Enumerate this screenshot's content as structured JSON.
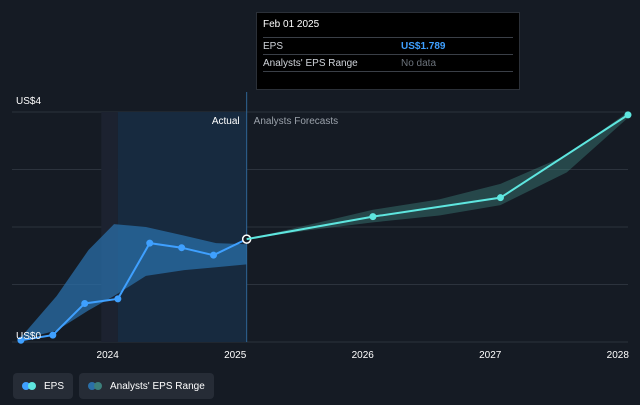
{
  "chart_data": {
    "type": "line",
    "ylabel_top": "US$4",
    "ylabel_bottom": "US$0",
    "ylim": [
      0,
      4
    ],
    "xlim": [
      2023.25,
      2028.08
    ],
    "x_ticks": [
      {
        "value": 2024,
        "label": "2024"
      },
      {
        "value": 2025,
        "label": "2025"
      },
      {
        "value": 2026,
        "label": "2026"
      },
      {
        "value": 2027,
        "label": "2027"
      },
      {
        "value": 2028,
        "label": "2028"
      }
    ],
    "divider_x": 2025.09,
    "region_labels": {
      "actual": "Actual",
      "forecast": "Analysts Forecasts"
    },
    "series": [
      {
        "name": "EPS",
        "color": "#3fa0ff",
        "points": [
          {
            "x": 2023.32,
            "y": 0.03
          },
          {
            "x": 2023.57,
            "y": 0.12
          },
          {
            "x": 2023.82,
            "y": 0.67
          },
          {
            "x": 2024.08,
            "y": 0.75
          },
          {
            "x": 2024.33,
            "y": 1.72
          },
          {
            "x": 2024.58,
            "y": 1.64
          },
          {
            "x": 2024.83,
            "y": 1.51
          },
          {
            "x": 2025.09,
            "y": 1.789
          }
        ]
      },
      {
        "name": "EPS Forecast",
        "color": "#5ee6df",
        "points": [
          {
            "x": 2025.09,
            "y": 1.789
          },
          {
            "x": 2026.08,
            "y": 2.18
          },
          {
            "x": 2027.08,
            "y": 2.51
          },
          {
            "x": 2028.08,
            "y": 3.95
          }
        ]
      }
    ],
    "analyst_range_actual": [
      {
        "x": 2023.3,
        "lo": 0.03,
        "hi": 0.03
      },
      {
        "x": 2023.6,
        "lo": 0.2,
        "hi": 0.8
      },
      {
        "x": 2023.85,
        "lo": 0.55,
        "hi": 1.6
      },
      {
        "x": 2024.05,
        "lo": 0.8,
        "hi": 2.05
      },
      {
        "x": 2024.3,
        "lo": 1.15,
        "hi": 2.0
      },
      {
        "x": 2024.6,
        "lo": 1.25,
        "hi": 1.85
      },
      {
        "x": 2024.85,
        "lo": 1.3,
        "hi": 1.72
      },
      {
        "x": 2025.09,
        "lo": 1.35,
        "hi": 1.7
      }
    ],
    "analyst_range_forecast": [
      {
        "x": 2025.09,
        "lo": 1.789,
        "hi": 1.789
      },
      {
        "x": 2025.6,
        "lo": 1.95,
        "hi": 2.05
      },
      {
        "x": 2026.08,
        "lo": 2.08,
        "hi": 2.3
      },
      {
        "x": 2026.6,
        "lo": 2.2,
        "hi": 2.48
      },
      {
        "x": 2027.08,
        "lo": 2.38,
        "hi": 2.75
      },
      {
        "x": 2027.6,
        "lo": 2.95,
        "hi": 3.25
      },
      {
        "x": 2028.08,
        "lo": 3.9,
        "hi": 4.0
      }
    ]
  },
  "tooltip": {
    "date": "Feb 01 2025",
    "eps_label": "EPS",
    "eps_value": "US$1.789",
    "range_label": "Analysts' EPS Range",
    "range_value": "No data"
  },
  "legend": {
    "eps": "EPS",
    "range": "Analysts' EPS Range",
    "eps_colors": [
      "#3fa0ff",
      "#5ee6df"
    ],
    "range_colors": [
      "#2a6fa8",
      "#3c7f7b"
    ]
  }
}
